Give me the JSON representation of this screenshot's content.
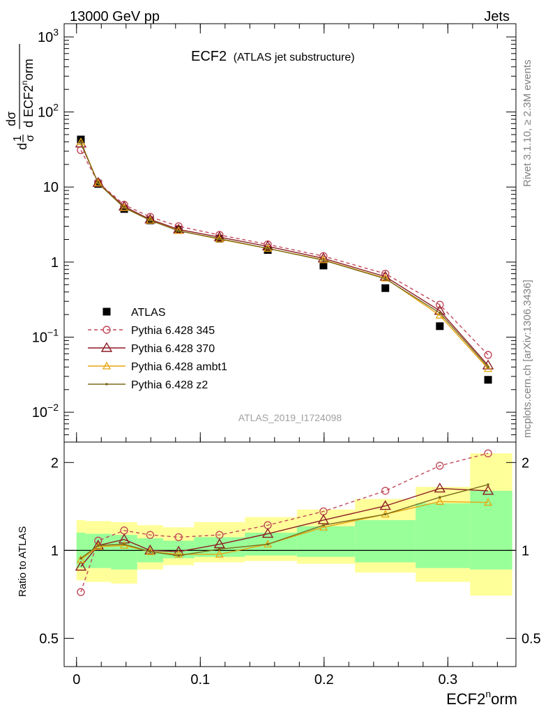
{
  "header": {
    "left": "13000 GeV pp",
    "right": "Jets"
  },
  "title": {
    "main": "ECF2",
    "sub": "(ATLAS jet substructure)"
  },
  "watermark": "ATLAS_2019_I1724098",
  "side_text": {
    "top": "Rivet 3.1.10, ≥ 2.3M events",
    "bottom": "mcplots.cern.ch [arXiv:1306.3436]"
  },
  "ylabel_top": {
    "num": "dσ",
    "den": "d ECF2",
    "sup": "n",
    "tail": "orm",
    "pre_num": "1",
    "pre_den": "σ",
    "d": "d"
  },
  "ylabel_bottom": "Ratio to ATLAS",
  "xlabel": {
    "main": "ECF2",
    "sup": "n",
    "tail": "orm"
  },
  "chart_data": [
    {
      "type": "line",
      "panel": "main",
      "yscale": "log",
      "ylim": [
        0.004,
        1500
      ],
      "xlim": [
        -0.01,
        0.355
      ],
      "y_ticks": [
        {
          "value": 1000,
          "base": "10",
          "exp": "3"
        },
        {
          "value": 100,
          "base": "10",
          "exp": "2"
        },
        {
          "value": 10,
          "label": "10"
        },
        {
          "value": 1,
          "label": "1"
        },
        {
          "value": 0.1,
          "base": "10",
          "exp": "−1"
        },
        {
          "value": 0.01,
          "base": "10",
          "exp": "−2"
        }
      ],
      "x": [
        0.0035,
        0.0175,
        0.0385,
        0.0595,
        0.0825,
        0.1155,
        0.1545,
        0.1995,
        0.2495,
        0.2935,
        0.3325
      ],
      "series": [
        {
          "name": "ATLAS",
          "color": "#000000",
          "marker": "square",
          "values": [
            43,
            11,
            5.1,
            3.6,
            2.7,
            2.05,
            1.45,
            0.9,
            0.45,
            0.14,
            0.027
          ]
        },
        {
          "name": "Pythia 6.428 345",
          "color": "#c0485a",
          "marker": "open-circle",
          "dash": true,
          "values": [
            31,
            11.5,
            5.8,
            4.0,
            3.0,
            2.3,
            1.72,
            1.2,
            0.7,
            0.27,
            0.058
          ]
        },
        {
          "name": "Pythia 6.428 370",
          "color": "#8b1c24",
          "marker": "open-triangle",
          "values": [
            38,
            11.4,
            5.5,
            3.7,
            2.72,
            2.15,
            1.62,
            1.12,
            0.64,
            0.225,
            0.042
          ]
        },
        {
          "name": "Pythia 6.428 ambt1",
          "color": "#e6a511",
          "marker": "open-triangle-small",
          "values": [
            40,
            11.3,
            5.3,
            3.6,
            2.62,
            2.02,
            1.52,
            1.07,
            0.61,
            0.195,
            0.038
          ]
        },
        {
          "name": "Pythia 6.428 z2",
          "color": "#7b6b1a",
          "marker": "dot",
          "values": [
            39.5,
            11.2,
            5.3,
            3.6,
            2.6,
            2.05,
            1.52,
            1.06,
            0.6,
            0.21,
            0.04
          ]
        }
      ]
    },
    {
      "type": "line",
      "panel": "ratio",
      "yscale": "log",
      "ylim": [
        0.4,
        2.35
      ],
      "xlim": [
        -0.01,
        0.355
      ],
      "y_ticks": [
        {
          "value": 0.5,
          "label": "0.5"
        },
        {
          "value": 1,
          "label": "1"
        },
        {
          "value": 2,
          "label": "2"
        }
      ],
      "x_ticks": [
        {
          "value": 0,
          "label": "0"
        },
        {
          "value": 0.1,
          "label": "0.1"
        },
        {
          "value": 0.2,
          "label": "0.2"
        },
        {
          "value": 0.3,
          "label": "0.3"
        }
      ],
      "x": [
        0.0035,
        0.0175,
        0.0385,
        0.0595,
        0.0825,
        0.1155,
        0.1545,
        0.1995,
        0.2495,
        0.2935,
        0.3325
      ],
      "bands": [
        {
          "x0": 0.0,
          "x1": 0.007,
          "yellow": [
            0.79,
            1.27
          ],
          "green": [
            0.87,
            1.15
          ]
        },
        {
          "x0": 0.007,
          "x1": 0.028,
          "yellow": [
            0.78,
            1.26
          ],
          "green": [
            0.87,
            1.14
          ]
        },
        {
          "x0": 0.028,
          "x1": 0.049,
          "yellow": [
            0.77,
            1.25
          ],
          "green": [
            0.86,
            1.13
          ]
        },
        {
          "x0": 0.049,
          "x1": 0.07,
          "yellow": [
            0.86,
            1.22
          ],
          "green": [
            0.91,
            1.1
          ]
        },
        {
          "x0": 0.07,
          "x1": 0.095,
          "yellow": [
            0.89,
            1.2
          ],
          "green": [
            0.94,
            1.08
          ]
        },
        {
          "x0": 0.095,
          "x1": 0.136,
          "yellow": [
            0.91,
            1.25
          ],
          "green": [
            0.95,
            1.11
          ]
        },
        {
          "x0": 0.136,
          "x1": 0.178,
          "yellow": [
            0.92,
            1.3
          ],
          "green": [
            0.96,
            1.15
          ]
        },
        {
          "x0": 0.178,
          "x1": 0.225,
          "yellow": [
            0.9,
            1.38
          ],
          "green": [
            0.95,
            1.21
          ]
        },
        {
          "x0": 0.225,
          "x1": 0.274,
          "yellow": [
            0.84,
            1.5
          ],
          "green": [
            0.91,
            1.27
          ]
        },
        {
          "x0": 0.274,
          "x1": 0.318,
          "yellow": [
            0.78,
            1.65
          ],
          "green": [
            0.87,
            1.45
          ]
        },
        {
          "x0": 0.318,
          "x1": 0.352,
          "yellow": [
            0.7,
            2.15
          ],
          "green": [
            0.86,
            1.6
          ]
        }
      ],
      "series": [
        {
          "name": "Pythia 6.428 345",
          "values": [
            0.72,
            1.08,
            1.17,
            1.13,
            1.11,
            1.13,
            1.22,
            1.36,
            1.6,
            1.95,
            2.15
          ]
        },
        {
          "name": "Pythia 6.428 370",
          "values": [
            0.88,
            1.04,
            1.09,
            1.0,
            0.99,
            1.05,
            1.14,
            1.27,
            1.42,
            1.63,
            1.6
          ]
        },
        {
          "name": "Pythia 6.428 ambt1",
          "values": [
            0.93,
            1.03,
            1.04,
            0.99,
            0.97,
            0.97,
            1.05,
            1.2,
            1.33,
            1.47,
            1.46
          ]
        },
        {
          "name": "Pythia 6.428 z2",
          "values": [
            0.94,
            1.04,
            1.05,
            0.99,
            0.96,
            1.01,
            1.05,
            1.22,
            1.33,
            1.52,
            1.68
          ]
        }
      ]
    }
  ]
}
